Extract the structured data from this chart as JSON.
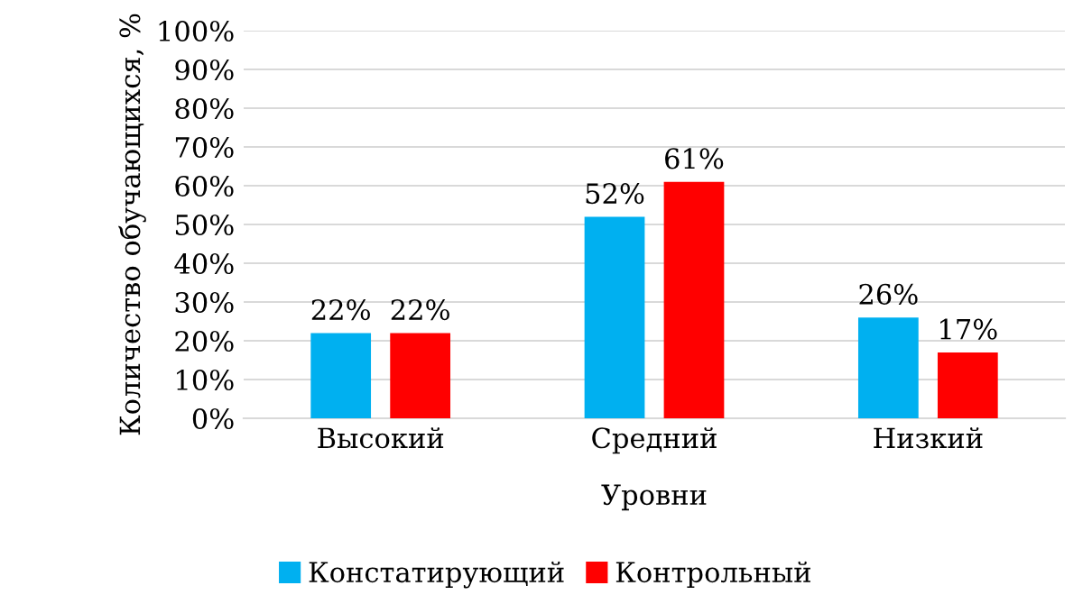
{
  "chart_data": {
    "type": "bar",
    "xlabel": "Уровни",
    "ylabel": "Количество обучающихся, %",
    "categories": [
      "Высокий",
      "Средний",
      "Низкий"
    ],
    "series": [
      {
        "name": "Констатирующий",
        "color": "#00b0f0",
        "values": [
          22,
          52,
          26
        ],
        "value_labels": [
          "22%",
          "52%",
          "26%"
        ]
      },
      {
        "name": "Контрольный",
        "color": "#ff0000",
        "values": [
          22,
          61,
          17
        ],
        "value_labels": [
          "22%",
          "61%",
          "17%"
        ]
      }
    ],
    "ylim": [
      0,
      100
    ],
    "yticks": [
      {
        "value": 0,
        "label": "0%"
      },
      {
        "value": 10,
        "label": "10%"
      },
      {
        "value": 20,
        "label": "20%"
      },
      {
        "value": 30,
        "label": "30%"
      },
      {
        "value": 40,
        "label": "40%"
      },
      {
        "value": 50,
        "label": "50%"
      },
      {
        "value": 60,
        "label": "60%"
      },
      {
        "value": 70,
        "label": "70%"
      },
      {
        "value": 80,
        "label": "80%"
      },
      {
        "value": 90,
        "label": "90%"
      },
      {
        "value": 100,
        "label": "100%"
      }
    ],
    "grid": "y",
    "legend": "bottom"
  }
}
